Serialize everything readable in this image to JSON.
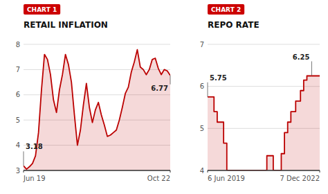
{
  "chart_data": [
    {
      "type": "area",
      "title": "RETAIL INFLATION",
      "subtitle": "CHART 1",
      "color": "#bb0000",
      "x": [
        0,
        1,
        2,
        3,
        4,
        5,
        6,
        7,
        8,
        9,
        10,
        11,
        12,
        13,
        14,
        15,
        16,
        17,
        18,
        19,
        20,
        21,
        22,
        23,
        24,
        25,
        26,
        27,
        28,
        29,
        30,
        31,
        32,
        33,
        34,
        35,
        36,
        37,
        38,
        39,
        40,
        41,
        42,
        43,
        44,
        45,
        46,
        47,
        48,
        49
      ],
      "values": [
        3.18,
        3.05,
        3.15,
        3.28,
        3.58,
        4.5,
        6.2,
        7.6,
        7.4,
        6.8,
        5.8,
        5.3,
        6.2,
        6.8,
        7.6,
        7.2,
        6.5,
        5.2,
        4.0,
        4.6,
        5.6,
        6.45,
        5.5,
        4.9,
        5.4,
        5.7,
        5.2,
        4.8,
        4.35,
        4.4,
        4.5,
        4.6,
        5.0,
        5.5,
        6.05,
        6.3,
        6.9,
        7.3,
        7.79,
        7.1,
        7.0,
        6.8,
        7.0,
        7.4,
        7.45,
        7.05,
        6.8,
        7.0,
        6.95,
        6.77
      ],
      "xlim": [
        0,
        49
      ],
      "xticks": [
        {
          "value": 0,
          "label": "Jun 19"
        },
        {
          "value": 49,
          "label": "Oct 22"
        }
      ],
      "ylim": [
        3,
        8
      ],
      "yticks": [
        3,
        4,
        5,
        6,
        7,
        8
      ],
      "grid": true,
      "annotations": [
        {
          "text": "3.18",
          "x": 0,
          "y": 3.18
        },
        {
          "text": "6.77",
          "x": 49,
          "y": 6.77
        }
      ]
    },
    {
      "type": "step",
      "title": "REPO RATE",
      "subtitle": "CHART 2",
      "color": "#bb0000",
      "x": [
        0,
        2,
        4,
        6,
        8,
        10,
        12,
        35,
        37,
        39,
        41,
        44,
        46,
        48,
        50,
        52,
        55,
        58,
        60,
        62,
        65,
        68,
        70
      ],
      "values": [
        5.75,
        5.75,
        5.4,
        5.15,
        5.15,
        4.65,
        4.0,
        4.0,
        4.35,
        4.35,
        4.0,
        4.0,
        4.4,
        4.9,
        5.15,
        5.4,
        5.65,
        5.9,
        6.15,
        6.25,
        6.25,
        6.25,
        6.25
      ],
      "xlim": [
        0,
        70
      ],
      "xticks": [
        {
          "value": 0,
          "label": "6 Jun 2019"
        },
        {
          "value": 70,
          "label": "7 Dec 2022"
        }
      ],
      "ylim": [
        4,
        7
      ],
      "yticks": [
        4,
        5,
        6,
        7
      ],
      "grid": true,
      "annotations": [
        {
          "text": "5.75",
          "x": 0,
          "y": 5.75
        },
        {
          "text": "6.25",
          "x": 65,
          "y": 6.25
        }
      ]
    }
  ]
}
